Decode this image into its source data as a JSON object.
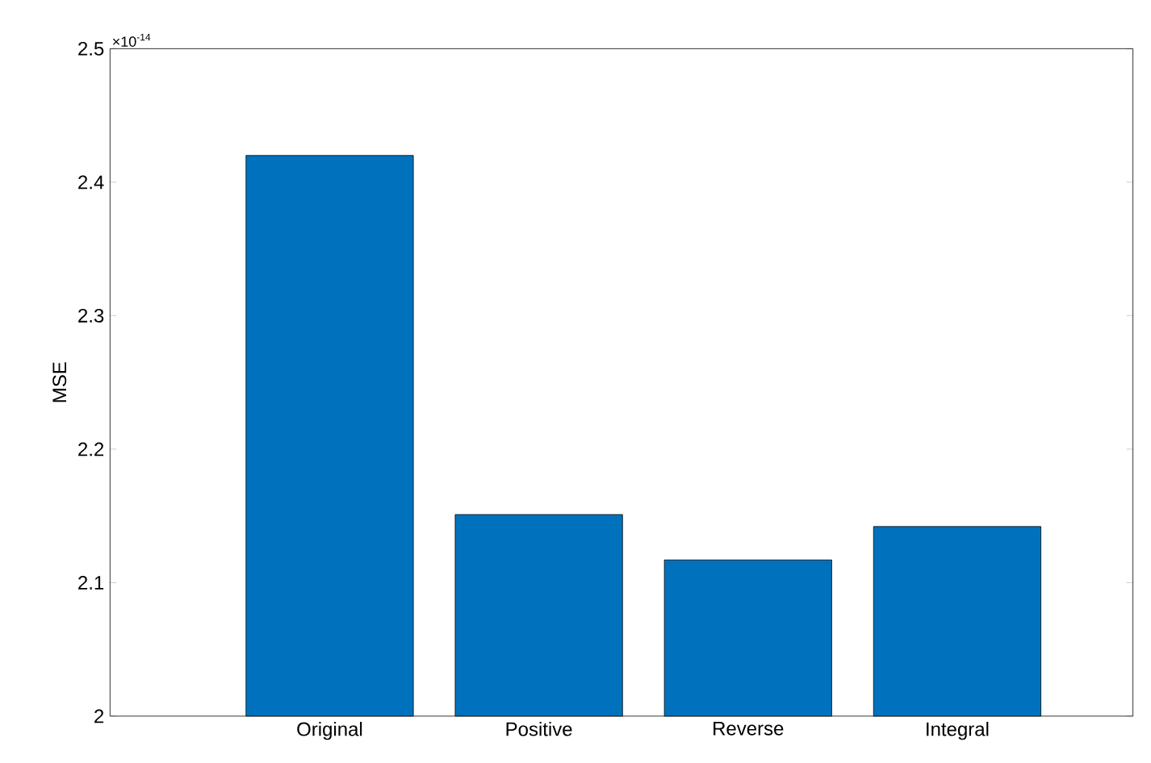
{
  "chart_data": {
    "type": "bar",
    "ylabel": "MSE",
    "categories": [
      "Original",
      "Positive",
      "Reverse",
      "Integral"
    ],
    "values": [
      2.42,
      2.151,
      2.117,
      2.142
    ],
    "color": "#0072bd",
    "ylim": [
      2,
      2.5
    ],
    "yticks": [
      2,
      2.1,
      2.2,
      2.3,
      2.4,
      2.5
    ],
    "annotations": [
      "×10$^{-14}$"
    ]
  }
}
